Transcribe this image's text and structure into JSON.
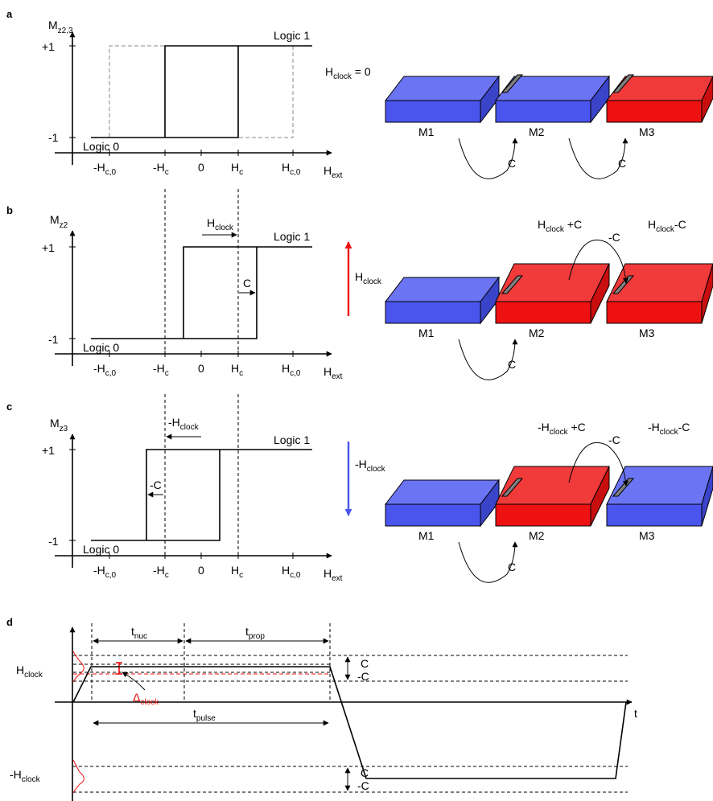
{
  "colors": {
    "blue": "#4a55ee",
    "red": "#ee1111",
    "grey": "#808080",
    "dash_grey": "#888888"
  },
  "axes": {
    "m_label": "M",
    "m_sub_a": "z2,3",
    "m_sub_b": "z2",
    "m_sub_c": "z3",
    "plus_one": "+1",
    "minus_one": "-1",
    "logic1": "Logic 1",
    "logic0": "Logic 0",
    "h_main": "H",
    "ext_sub": "ext",
    "c_sub": "c",
    "c0_sub": "c,0",
    "neg_h": "-H",
    "zero": "0"
  },
  "panels": {
    "a": {
      "tag": "a",
      "field": "H",
      "field_sub": "clock",
      "field_value": " = 0"
    },
    "b": {
      "tag": "b",
      "h_clock_main": "H",
      "h_clock_sub": "clock",
      "c_label": "C",
      "left_main": "H",
      "left_sub": "clock",
      "left_suffix": " +C",
      "right_main": "H",
      "right_sub": "clock",
      "right_suffix": "-C",
      "coupling_back": "-C",
      "side_main": "H",
      "side_sub": "clock"
    },
    "c": {
      "tag": "c",
      "h_clock_main": "-H",
      "h_clock_sub": "clock",
      "c_label": "-C",
      "left_main": "-H",
      "left_sub": "clock",
      "left_suffix": " +C",
      "right_main": "-H",
      "right_sub": "clock",
      "right_suffix": "-C",
      "coupling_back": "-C",
      "side_main": "-H",
      "side_sub": "clock"
    }
  },
  "magnets": {
    "m1": "M1",
    "m2": "M2",
    "m3": "M3",
    "coupling": "C"
  },
  "timing": {
    "tag": "d",
    "t_main": "t",
    "nuc_sub": "nuc",
    "prop_sub": "prop",
    "pulse_sub": "pulse",
    "h_clock_main": "H",
    "h_clock_sub": "clock",
    "neg_h_clock_main": "-H",
    "c_upper": "C",
    "c_lower": "-C",
    "delta_main": "Δ",
    "delta_sub": "clock",
    "time_axis": "t"
  }
}
